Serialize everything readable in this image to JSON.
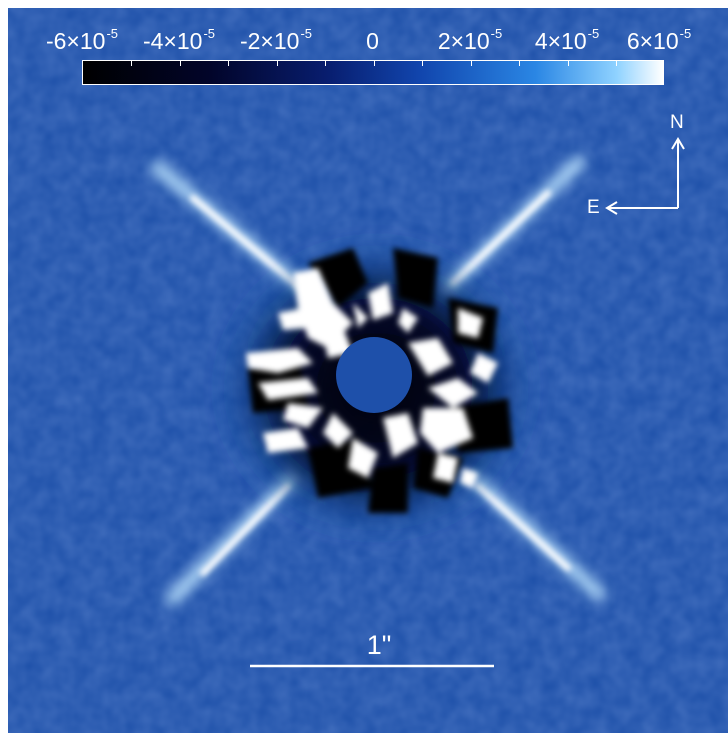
{
  "colorbar": {
    "labels": [
      {
        "mantissa": "-6×10",
        "exponent": "-5"
      },
      {
        "mantissa": "-4×10",
        "exponent": "-5"
      },
      {
        "mantissa": "-2×10",
        "exponent": "-5"
      },
      {
        "mantissa": "0",
        "exponent": ""
      },
      {
        "mantissa": "2×10",
        "exponent": "-5"
      },
      {
        "mantissa": "4×10",
        "exponent": "-5"
      },
      {
        "mantissa": "6×10",
        "exponent": "-5"
      }
    ],
    "colors": [
      "#000000",
      "#081d6e",
      "#1145ad",
      "#2a86e4",
      "#ffffff"
    ]
  },
  "compass": {
    "north": "N",
    "east": "E"
  },
  "scale_bar": {
    "label": "1\""
  },
  "colors": {
    "background": "#1c4fa8",
    "mask": "#1e50aa",
    "highlight": "#ffffff"
  }
}
